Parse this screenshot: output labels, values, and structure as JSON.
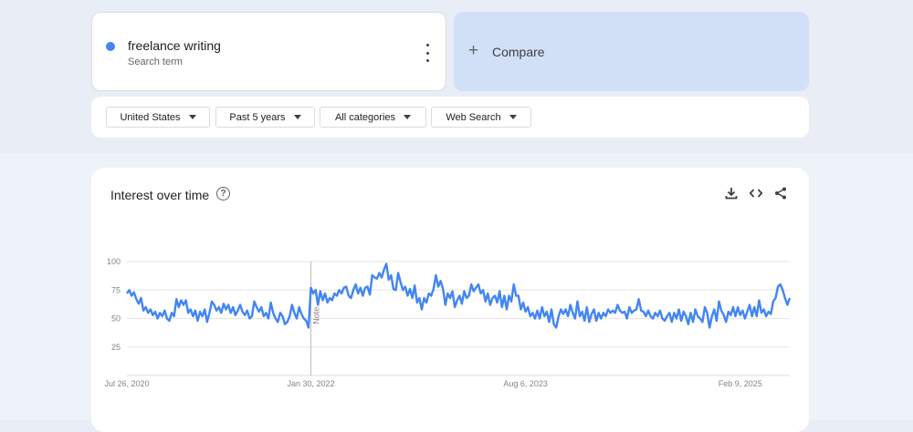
{
  "search_term": {
    "name": "freelance writing",
    "subtitle": "Search term",
    "color": "#4285f4"
  },
  "compare": {
    "plus": "+",
    "label": "Compare"
  },
  "filters": [
    {
      "label": "United States"
    },
    {
      "label": "Past 5 years"
    },
    {
      "label": "All categories"
    },
    {
      "label": "Web Search"
    }
  ],
  "chart": {
    "title": "Interest over time",
    "help": "?",
    "tools": [
      "download-icon",
      "embed-icon",
      "share-icon"
    ]
  },
  "chart_data": {
    "type": "line",
    "title": "Interest over time",
    "xlabel": "",
    "ylabel": "",
    "ylim": [
      0,
      100
    ],
    "y_ticks": [
      25,
      50,
      75,
      100
    ],
    "grid": true,
    "line_color": "#4285f4",
    "x_tick_labels": [
      "Jul 26, 2020",
      "Jan 30, 2022",
      "Aug 6, 2023",
      "Feb 9, 2025"
    ],
    "annotation": {
      "label": "Note",
      "at_index": 78
    },
    "series": [
      {
        "name": "freelance writing",
        "values": [
          72,
          75,
          70,
          73,
          67,
          63,
          68,
          57,
          60,
          55,
          58,
          53,
          56,
          50,
          55,
          52,
          57,
          50,
          48,
          55,
          52,
          67,
          60,
          66,
          62,
          66,
          55,
          58,
          52,
          57,
          48,
          56,
          52,
          58,
          47,
          55,
          65,
          62,
          57,
          60,
          55,
          63,
          58,
          62,
          55,
          60,
          53,
          57,
          62,
          56,
          53,
          57,
          50,
          52,
          65,
          60,
          56,
          60,
          52,
          55,
          50,
          64,
          55,
          50,
          47,
          55,
          52,
          45,
          47,
          52,
          62,
          55,
          50,
          60,
          54,
          50,
          48,
          42,
          77,
          72,
          75,
          62,
          74,
          66,
          72,
          64,
          68,
          66,
          72,
          70,
          75,
          72,
          77,
          78,
          70,
          68,
          75,
          80,
          72,
          77,
          70,
          77,
          78,
          71,
          88,
          86,
          85,
          90,
          86,
          93,
          98,
          84,
          88,
          76,
          75,
          90,
          82,
          75,
          78,
          70,
          76,
          68,
          79,
          64,
          68,
          58,
          68,
          64,
          72,
          70,
          76,
          88,
          78,
          83,
          76,
          62,
          72,
          68,
          74,
          60,
          66,
          70,
          63,
          74,
          68,
          70,
          80,
          74,
          77,
          80,
          72,
          75,
          65,
          72,
          62,
          68,
          70,
          64,
          74,
          60,
          70,
          58,
          70,
          65,
          80,
          70,
          70,
          58,
          64,
          56,
          60,
          52,
          55,
          50,
          57,
          50,
          60,
          52,
          56,
          47,
          58,
          45,
          42,
          52,
          58,
          54,
          58,
          52,
          62,
          55,
          50,
          65,
          52,
          56,
          48,
          60,
          47,
          54,
          58,
          48,
          55,
          50,
          55,
          52,
          58,
          55,
          57,
          55,
          62,
          57,
          55,
          56,
          50,
          60,
          55,
          57,
          58,
          67,
          57,
          56,
          52,
          57,
          52,
          50,
          55,
          52,
          57,
          50,
          48,
          52,
          55,
          47,
          55,
          50,
          58,
          48,
          56,
          52,
          45,
          55,
          47,
          58,
          52,
          50,
          47,
          60,
          55,
          42,
          52,
          58,
          48,
          65,
          57,
          53,
          47,
          56,
          53,
          60,
          52,
          60,
          53,
          57,
          50,
          56,
          62,
          52,
          60,
          52,
          66,
          55,
          58,
          52,
          56,
          54,
          65,
          68,
          78,
          80,
          75,
          68,
          62,
          68
        ]
      }
    ]
  }
}
